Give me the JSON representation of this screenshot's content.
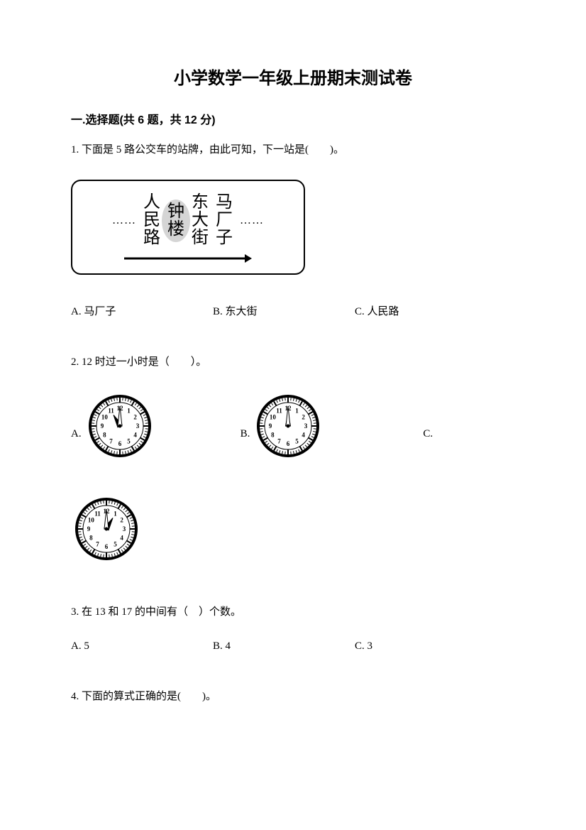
{
  "title": "小学数学一年级上册期末测试卷",
  "section1": {
    "header": "一.选择题(共 6 题，共 12 分)",
    "q1": {
      "text": "1. 下面是 5 路公交车的站牌，由此可知，下一站是(　　)。",
      "stops": {
        "s1a": "人",
        "s1b": "民",
        "s1c": "路",
        "s2a": "钟",
        "s2b": "楼",
        "s3a": "东",
        "s3b": "大",
        "s3c": "街",
        "s4a": "马",
        "s4b": "厂",
        "s4c": "子"
      },
      "optA": "A. 马厂子",
      "optB": "B. 东大街",
      "optC": "C. 人民路"
    },
    "q2": {
      "text": "2. 12 时过一小时是（　　）。",
      "optA": "A.",
      "optB": "B.",
      "optC": "C.",
      "clockA": {
        "hour_angle": -30,
        "minute_angle": 0
      },
      "clockB": {
        "hour_angle": 0,
        "minute_angle": 0
      },
      "clockC": {
        "hour_angle": 30,
        "minute_angle": 0
      }
    },
    "q3": {
      "text": "3. 在 13 和 17 的中间有（　）个数。",
      "optA": "A. 5",
      "optB": "B. 4",
      "optC": "C. 3"
    },
    "q4": {
      "text": "4. 下面的算式正确的是(　　)。"
    }
  },
  "colors": {
    "text": "#000000",
    "background": "#ffffff",
    "shade": "#888888"
  }
}
